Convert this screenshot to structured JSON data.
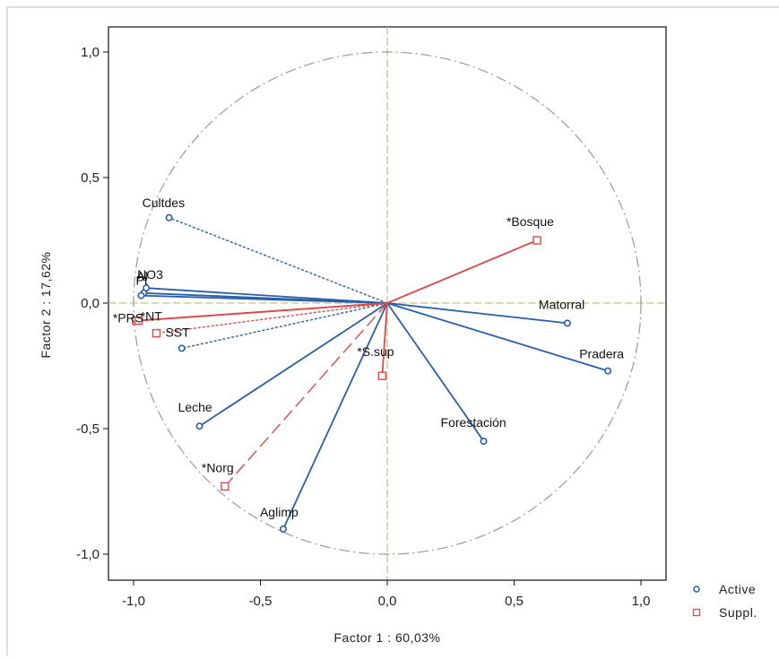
{
  "chart_data": {
    "type": "scatter",
    "title": "",
    "xlabel": "Factor 1 : 60,03%",
    "ylabel": "Factor 2 : 17,62%",
    "xlim": [
      -1.1,
      1.1
    ],
    "ylim": [
      -1.1,
      1.1
    ],
    "xticks": [
      "-1,0",
      "-0,5",
      "0,0",
      "0,5",
      "1,0"
    ],
    "yticks": [
      "1,0",
      "0,5",
      "0,0",
      "-0,5",
      "-1,0"
    ],
    "unit_circle": true,
    "legend_position": "bottom-right, outside plot",
    "series": [
      {
        "name": "Active",
        "marker": "circle",
        "color": "#2a5ea8",
        "points": [
          {
            "label": "Cultdes",
            "x": -0.86,
            "y": 0.34
          },
          {
            "label": "NO3",
            "x": -0.95,
            "y": 0.06
          },
          {
            "label": "Al",
            "x": -0.96,
            "y": 0.04
          },
          {
            "label": "Pt",
            "x": -0.97,
            "y": 0.03
          },
          {
            "label": "",
            "x": -0.81,
            "y": -0.18
          },
          {
            "label": "Leche",
            "x": -0.74,
            "y": -0.49
          },
          {
            "label": "Aglimp",
            "x": -0.41,
            "y": -0.9
          },
          {
            "label": "Forestación",
            "x": 0.38,
            "y": -0.55
          },
          {
            "label": "Matorral",
            "x": 0.71,
            "y": -0.08
          },
          {
            "label": "Pradera",
            "x": 0.87,
            "y": -0.27
          }
        ]
      },
      {
        "name": "Suppl.",
        "marker": "square",
        "color": "#d94a4a",
        "points": [
          {
            "label": "*PRS",
            "x": -0.99,
            "y": -0.07
          },
          {
            "label": "*NT",
            "x": -0.98,
            "y": -0.07
          },
          {
            "label": "SST",
            "x": -0.91,
            "y": -0.12
          },
          {
            "label": "*Norg",
            "x": -0.64,
            "y": -0.73
          },
          {
            "label": "*S.sup",
            "x": -0.02,
            "y": -0.29
          },
          {
            "label": "*Bosque",
            "x": 0.59,
            "y": 0.25
          }
        ]
      }
    ]
  },
  "colors": {
    "active": "#2a5ea8",
    "suppl": "#d94a4a",
    "circle": "#9a9a9a",
    "zero_lines": "#c9c08a",
    "frame": "#111111"
  }
}
